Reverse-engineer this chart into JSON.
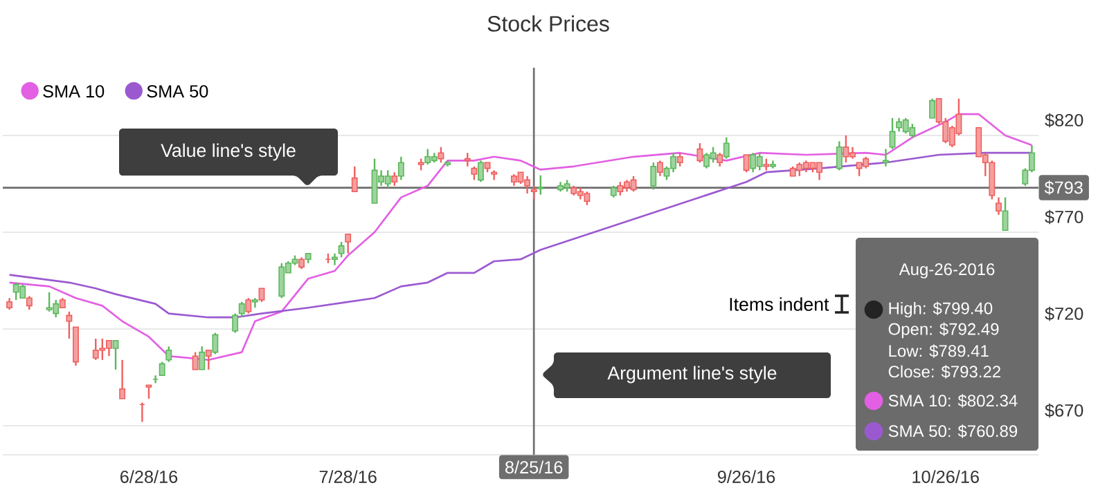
{
  "chart_data": {
    "type": "candlestick",
    "title": "Stock Prices",
    "x": [
      "2016-06-07",
      "2016-06-08",
      "2016-06-09",
      "2016-06-10",
      "2016-06-13",
      "2016-06-14",
      "2016-06-15",
      "2016-06-16",
      "2016-06-17",
      "2016-06-20",
      "2016-06-21",
      "2016-06-22",
      "2016-06-23",
      "2016-06-24",
      "2016-06-27",
      "2016-06-28",
      "2016-06-29",
      "2016-06-30",
      "2016-07-01",
      "2016-07-05",
      "2016-07-06",
      "2016-07-07",
      "2016-07-08",
      "2016-07-11",
      "2016-07-12",
      "2016-07-13",
      "2016-07-14",
      "2016-07-15",
      "2016-07-18",
      "2016-07-19",
      "2016-07-20",
      "2016-07-21",
      "2016-07-22",
      "2016-07-25",
      "2016-07-26",
      "2016-07-27",
      "2016-07-28",
      "2016-07-29",
      "2016-08-01",
      "2016-08-02",
      "2016-08-03",
      "2016-08-04",
      "2016-08-05",
      "2016-08-08",
      "2016-08-09",
      "2016-08-10",
      "2016-08-11",
      "2016-08-12",
      "2016-08-15",
      "2016-08-16",
      "2016-08-17",
      "2016-08-18",
      "2016-08-19",
      "2016-08-22",
      "2016-08-23",
      "2016-08-24",
      "2016-08-25",
      "2016-08-26",
      "2016-08-29",
      "2016-08-30",
      "2016-08-31",
      "2016-09-01",
      "2016-09-02",
      "2016-09-06",
      "2016-09-07",
      "2016-09-08",
      "2016-09-09",
      "2016-09-12",
      "2016-09-13",
      "2016-09-14",
      "2016-09-15",
      "2016-09-16",
      "2016-09-19",
      "2016-09-20",
      "2016-09-21",
      "2016-09-22",
      "2016-09-23",
      "2016-09-26",
      "2016-09-27",
      "2016-09-28",
      "2016-09-29",
      "2016-09-30",
      "2016-10-03",
      "2016-10-04",
      "2016-10-05",
      "2016-10-06",
      "2016-10-07",
      "2016-10-10",
      "2016-10-11",
      "2016-10-12",
      "2016-10-13",
      "2016-10-14",
      "2016-10-17",
      "2016-10-18",
      "2016-10-19",
      "2016-10-20",
      "2016-10-21",
      "2016-10-24",
      "2016-10-25",
      "2016-10-26",
      "2016-10-27",
      "2016-10-28",
      "2016-10-31",
      "2016-11-01",
      "2016-11-02",
      "2016-11-03",
      "2016-11-04",
      "2016-11-07",
      "2016-11-08"
    ],
    "ohlc": [
      [
        734,
        736,
        730,
        731
      ],
      [
        739,
        744,
        735,
        743
      ],
      [
        736,
        743,
        736,
        742
      ],
      [
        736,
        737,
        730,
        732
      ],
      [
        730,
        739,
        729,
        731
      ],
      [
        728,
        735,
        726,
        733
      ],
      [
        735,
        736,
        731,
        731
      ],
      [
        727,
        729,
        715,
        724
      ],
      [
        721,
        721,
        701,
        703
      ],
      [
        709,
        715,
        704,
        705
      ],
      [
        710,
        715,
        704,
        709
      ],
      [
        714,
        714,
        706,
        710
      ],
      [
        710,
        714,
        699,
        714
      ],
      [
        689,
        704,
        684,
        684
      ],
      [
        681,
        682,
        672,
        681
      ],
      [
        691,
        691,
        684,
        690
      ],
      [
        694,
        696,
        692,
        694
      ],
      [
        696,
        703,
        696,
        702
      ],
      [
        704,
        711,
        703,
        709
      ],
      [
        706,
        708,
        699,
        699
      ],
      [
        699,
        711,
        699,
        708
      ],
      [
        709,
        709,
        699,
        706
      ],
      [
        708,
        718,
        707,
        717
      ],
      [
        719,
        728,
        718,
        727
      ],
      [
        728,
        734,
        726,
        733
      ],
      [
        735,
        736,
        728,
        729
      ],
      [
        734,
        736,
        731,
        735
      ],
      [
        741,
        741,
        734,
        735
      ],
      [
        737,
        754,
        736,
        752
      ],
      [
        749,
        755,
        749,
        754
      ],
      [
        754,
        758,
        753,
        756
      ],
      [
        756,
        757,
        751,
        752
      ],
      [
        756,
        759,
        754,
        759
      ],
      [
        756,
        759,
        754,
        756
      ],
      [
        756,
        759,
        753,
        757
      ],
      [
        759,
        765,
        757,
        763
      ],
      [
        769,
        769,
        759,
        765
      ],
      [
        798,
        804,
        791,
        791
      ],
      [
        785,
        808,
        785,
        802
      ],
      [
        796,
        802,
        794,
        799
      ],
      [
        795,
        802,
        793,
        799
      ],
      [
        799,
        801,
        794,
        796
      ],
      [
        799,
        809,
        797,
        806
      ],
      [
        806,
        808,
        802,
        805
      ],
      [
        806,
        813,
        805,
        809
      ],
      [
        807,
        811,
        806,
        809
      ],
      [
        811,
        814,
        806,
        808
      ],
      [
        805,
        807,
        804,
        806
      ],
      [
        808,
        811,
        804,
        807
      ],
      [
        803,
        804,
        797,
        800
      ],
      [
        797,
        807,
        796,
        806
      ],
      [
        806,
        806,
        801,
        803
      ],
      [
        801,
        802,
        797,
        800
      ],
      [
        799,
        800,
        794,
        796
      ],
      [
        801,
        801,
        795,
        796
      ],
      [
        797,
        799,
        790,
        794
      ],
      [
        792,
        794,
        787,
        791
      ],
      [
        792.49,
        799.4,
        789.41,
        793.22
      ],
      [
        792,
        796,
        791,
        794
      ],
      [
        793,
        797,
        791,
        795
      ],
      [
        793,
        794,
        789,
        790
      ],
      [
        791,
        793,
        787,
        789
      ],
      [
        790,
        791,
        784,
        786
      ],
      [
        789,
        794,
        788,
        793
      ],
      [
        794,
        796,
        789,
        791
      ],
      [
        796,
        797,
        791,
        793
      ],
      [
        797,
        799,
        791,
        792
      ],
      [
        794,
        806,
        792,
        804
      ],
      [
        806,
        807,
        799,
        801
      ],
      [
        799,
        804,
        797,
        803
      ],
      [
        803,
        811,
        801,
        809
      ],
      [
        809,
        811,
        804,
        806
      ],
      [
        813,
        816,
        806,
        807
      ],
      [
        804,
        811,
        803,
        810
      ],
      [
        808,
        814,
        806,
        811
      ],
      [
        810,
        811,
        804,
        806
      ],
      [
        809,
        819,
        808,
        816
      ],
      [
        810,
        810,
        801,
        802
      ],
      [
        803,
        811,
        801,
        810
      ],
      [
        804,
        811,
        802,
        809
      ],
      [
        805,
        808,
        802,
        804
      ],
      [
        804,
        807,
        803,
        805
      ],
      [
        803,
        804,
        799,
        799
      ],
      [
        805,
        806,
        799,
        802
      ],
      [
        806,
        807,
        801,
        803
      ],
      [
        806,
        806,
        801,
        803
      ],
      [
        806,
        806,
        797,
        801
      ],
      [
        803,
        817,
        802,
        814
      ],
      [
        814,
        820,
        806,
        809
      ],
      [
        811,
        814,
        808,
        809
      ],
      [
        806,
        806,
        799,
        803
      ],
      [
        808,
        809,
        803,
        804
      ],
      [
        806,
        813,
        804,
        807
      ],
      [
        814,
        829,
        813,
        822
      ],
      [
        824,
        829,
        822,
        827
      ],
      [
        822,
        829,
        821,
        828
      ],
      [
        820,
        826,
        819,
        824
      ],
      [
        829,
        839,
        829,
        838
      ],
      [
        839,
        839,
        826,
        827
      ],
      [
        827,
        829,
        816,
        817
      ],
      [
        824,
        825,
        814,
        815
      ],
      [
        831,
        839,
        820,
        821
      ],
      [
        824,
        824,
        809,
        809
      ],
      [
        810,
        811,
        799,
        806
      ],
      [
        806,
        807,
        787,
        789
      ],
      [
        785,
        788,
        779,
        781
      ],
      [
        771,
        788,
        771,
        781
      ],
      [
        795,
        803,
        794,
        802
      ],
      [
        802,
        815,
        801,
        811
      ]
    ],
    "colors": [
      "#ef5f5f",
      "#5cb85c",
      "#5cb85c",
      "#ef5f5f",
      "#5cb85c",
      "#5cb85c",
      "#ef5f5f",
      "#ef5f5f",
      "#ef5f5f",
      "#ef5f5f",
      "#ef5f5f",
      "#ef5f5f",
      "#5cb85c",
      "#ef5f5f",
      "#ef5f5f",
      "#ef5f5f",
      "#5cb85c",
      "#5cb85c",
      "#5cb85c",
      "#ef5f5f",
      "#5cb85c",
      "#ef5f5f",
      "#5cb85c",
      "#5cb85c",
      "#5cb85c",
      "#ef5f5f",
      "#5cb85c",
      "#ef5f5f",
      "#5cb85c",
      "#5cb85c",
      "#5cb85c",
      "#ef5f5f",
      "#5cb85c",
      "#ef5f5f",
      "#5cb85c",
      "#5cb85c",
      "#ef5f5f",
      "#ef5f5f",
      "#5cb85c",
      "#5cb85c",
      "#5cb85c",
      "#ef5f5f",
      "#5cb85c",
      "#ef5f5f",
      "#5cb85c",
      "#5cb85c",
      "#ef5f5f",
      "#5cb85c",
      "#ef5f5f",
      "#ef5f5f",
      "#5cb85c",
      "#ef5f5f",
      "#ef5f5f",
      "#ef5f5f",
      "#ef5f5f",
      "#ef5f5f",
      "#ef5f5f",
      "#5cb85c",
      "#5cb85c",
      "#5cb85c",
      "#ef5f5f",
      "#ef5f5f",
      "#ef5f5f",
      "#5cb85c",
      "#ef5f5f",
      "#ef5f5f",
      "#ef5f5f",
      "#5cb85c",
      "#ef5f5f",
      "#5cb85c",
      "#5cb85c",
      "#ef5f5f",
      "#ef5f5f",
      "#5cb85c",
      "#5cb85c",
      "#ef5f5f",
      "#5cb85c",
      "#ef5f5f",
      "#5cb85c",
      "#5cb85c",
      "#ef5f5f",
      "#5cb85c",
      "#ef5f5f",
      "#ef5f5f",
      "#ef5f5f",
      "#ef5f5f",
      "#ef5f5f",
      "#5cb85c",
      "#ef5f5f",
      "#ef5f5f",
      "#ef5f5f",
      "#ef5f5f",
      "#5cb85c",
      "#5cb85c",
      "#5cb85c",
      "#5cb85c",
      "#5cb85c",
      "#5cb85c",
      "#ef5f5f",
      "#ef5f5f",
      "#ef5f5f",
      "#ef5f5f",
      "#ef5f5f",
      "#ef5f5f",
      "#ef5f5f",
      "#ef5f5f",
      "#5cb85c",
      "#5cb85c",
      "#5cb85c"
    ],
    "series": [
      {
        "name": "SMA 10",
        "type": "line",
        "color": "#e35fe3",
        "x": [
          "2016-06-07",
          "2016-06-13",
          "2016-06-17",
          "2016-06-21",
          "2016-06-24",
          "2016-06-28",
          "2016-07-01",
          "2016-07-07",
          "2016-07-12",
          "2016-07-14",
          "2016-07-18",
          "2016-07-22",
          "2016-07-26",
          "2016-07-28",
          "2016-08-01",
          "2016-08-05",
          "2016-08-09",
          "2016-08-12",
          "2016-08-16",
          "2016-08-19",
          "2016-08-23",
          "2016-08-26",
          "2016-08-31",
          "2016-09-09",
          "2016-09-16",
          "2016-09-23",
          "2016-09-28",
          "2016-10-05",
          "2016-10-14",
          "2016-10-17",
          "2016-10-21",
          "2016-10-26",
          "2016-10-28",
          "2016-10-31",
          "2016-11-04",
          "2016-11-08"
        ],
        "values": [
          744,
          742,
          736,
          732,
          724,
          716,
          706,
          704,
          708,
          724,
          729,
          746,
          750,
          758,
          770,
          788,
          794,
          807,
          807,
          809,
          807,
          802.34,
          804,
          809,
          811,
          807,
          811,
          810,
          811,
          810,
          819,
          827,
          831,
          831,
          820,
          815
        ]
      },
      {
        "name": "SMA 50",
        "type": "line",
        "color": "#9b59d0",
        "x": [
          "2016-06-07",
          "2016-06-16",
          "2016-06-20",
          "2016-06-23",
          "2016-06-29",
          "2016-07-01",
          "2016-07-07",
          "2016-07-11",
          "2016-07-15",
          "2016-07-22",
          "2016-07-28",
          "2016-08-01",
          "2016-08-05",
          "2016-08-09",
          "2016-08-12",
          "2016-08-16",
          "2016-08-19",
          "2016-08-23",
          "2016-08-26",
          "2016-09-26",
          "2016-09-29",
          "2016-10-07",
          "2016-10-17",
          "2016-10-25",
          "2016-11-01",
          "2016-11-08"
        ],
        "values": [
          748,
          744,
          741,
          738,
          733,
          728,
          726,
          726,
          728,
          731,
          734,
          736,
          742,
          744,
          749,
          749,
          755,
          756,
          760.89,
          796,
          801,
          803,
          806,
          810,
          811,
          811
        ]
      }
    ],
    "xlim": [
      "2016-06-06",
      "2016-11-09"
    ],
    "ylim": [
      655,
      855
    ],
    "xticks": [
      {
        "value": "2016-06-28",
        "label": "6/28/16"
      },
      {
        "value": "2016-07-28",
        "label": "7/28/16"
      },
      {
        "value": "2016-09-26",
        "label": "9/26/16"
      },
      {
        "value": "2016-10-26",
        "label": "10/26/16"
      }
    ],
    "yticks": [
      {
        "value": 670,
        "label": "$670"
      },
      {
        "value": 720,
        "label": "$720"
      },
      {
        "value": 770,
        "label": "$770"
      },
      {
        "value": 820,
        "label": "$820"
      }
    ],
    "grid": "y",
    "legend": "top left",
    "ref_lines": [
      {
        "axis": "x",
        "value": "2016-08-25",
        "label": "8/25/16",
        "color": "#6e6e6e"
      },
      {
        "axis": "y",
        "value": 793,
        "label": "$793",
        "color": "#6e6e6e"
      }
    ],
    "annotations": [
      "Value line's style",
      "Argument line's style",
      "Items indent",
      "Aug-26-2016",
      "High: $799.40",
      "Open: $792.49",
      "Low: $789.41",
      "Close: $793.22",
      "SMA 10: $802.34",
      "SMA 50: $760.89"
    ]
  }
}
